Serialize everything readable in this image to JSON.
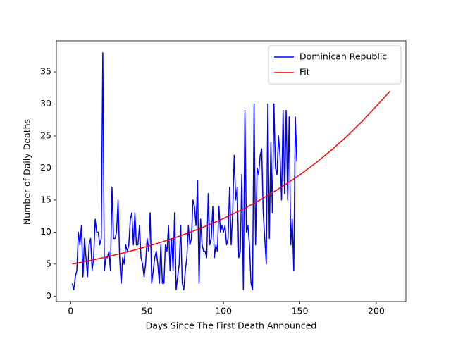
{
  "chart_data": {
    "type": "line",
    "xlabel": "Days Since The First Death Announced",
    "ylabel": "Number of Daily Deaths",
    "xlim": [
      -9.4,
      219.4
    ],
    "ylim": [
      -0.85,
      39.85
    ],
    "xticks": [
      0,
      50,
      100,
      150,
      200
    ],
    "yticks": [
      0,
      5,
      10,
      15,
      20,
      25,
      30,
      35
    ],
    "legend": "upper right",
    "series": [
      {
        "name": "Dominican Republic",
        "color": "#0000ff",
        "x": [
          1,
          2,
          3,
          4,
          5,
          6,
          7,
          8,
          9,
          10,
          11,
          12,
          13,
          14,
          15,
          16,
          17,
          18,
          19,
          20,
          21,
          22,
          23,
          24,
          25,
          26,
          27,
          28,
          29,
          30,
          31,
          32,
          33,
          34,
          35,
          36,
          37,
          38,
          39,
          40,
          41,
          42,
          43,
          44,
          45,
          46,
          47,
          48,
          49,
          50,
          51,
          52,
          53,
          54,
          55,
          56,
          57,
          58,
          59,
          60,
          61,
          62,
          63,
          64,
          65,
          66,
          67,
          68,
          69,
          70,
          71,
          72,
          73,
          74,
          75,
          76,
          77,
          78,
          79,
          80,
          81,
          82,
          83,
          84,
          85,
          86,
          87,
          88,
          89,
          90,
          91,
          92,
          93,
          94,
          95,
          96,
          97,
          98,
          99,
          100,
          101,
          102,
          103,
          104,
          105,
          106,
          107,
          108,
          109,
          110,
          111,
          112,
          113,
          114,
          115,
          116,
          117,
          118,
          119,
          120,
          121,
          122,
          123,
          124,
          125,
          126,
          127,
          128,
          129,
          130,
          131,
          132,
          133,
          134,
          135,
          136,
          137,
          138,
          139,
          140,
          141,
          142,
          143,
          144,
          145,
          146,
          147,
          148
        ],
        "values": [
          2,
          1,
          3,
          4,
          10,
          8,
          11,
          3,
          9,
          6,
          3,
          8,
          9,
          4,
          6,
          12,
          10,
          10,
          8,
          9,
          38,
          4,
          6,
          6,
          7,
          4,
          17,
          9,
          9,
          10,
          15,
          6,
          2,
          6,
          5,
          8,
          7,
          8,
          12,
          13,
          8,
          13,
          8,
          8,
          11,
          6,
          5,
          3,
          5,
          9,
          7,
          13,
          2,
          4,
          6,
          7,
          5,
          2,
          8,
          2,
          2,
          8,
          7,
          11,
          4,
          9,
          4,
          13,
          1,
          3,
          5,
          11,
          2,
          1,
          4,
          6,
          11,
          8,
          9,
          15,
          14,
          11,
          18,
          2,
          12,
          8,
          7,
          7,
          6,
          16,
          8,
          9,
          14,
          6,
          8,
          7,
          14,
          10,
          11,
          10,
          11,
          8,
          9,
          17,
          8,
          13,
          22,
          15,
          17,
          6,
          7,
          19,
          1,
          29,
          10,
          11,
          8,
          2,
          1,
          30,
          8,
          20,
          19,
          22,
          23,
          13,
          9,
          5,
          30,
          9,
          24,
          13,
          30,
          20,
          19,
          25,
          22,
          15,
          29,
          16,
          29,
          15,
          28,
          8,
          12,
          4,
          28,
          21
        ]
      },
      {
        "name": "Fit",
        "color": "#ff0000",
        "x": [
          1,
          11,
          21,
          31,
          41,
          51,
          61,
          71,
          81,
          91,
          101,
          111,
          121,
          131,
          141,
          151,
          161,
          171,
          181,
          191,
          201,
          209
        ],
        "values": [
          5.0,
          5.47,
          5.98,
          6.54,
          7.15,
          7.82,
          8.55,
          9.35,
          10.23,
          11.18,
          12.23,
          13.37,
          14.62,
          15.99,
          17.49,
          19.12,
          20.91,
          22.87,
          25.01,
          27.35,
          29.91,
          32.0
        ]
      }
    ]
  }
}
